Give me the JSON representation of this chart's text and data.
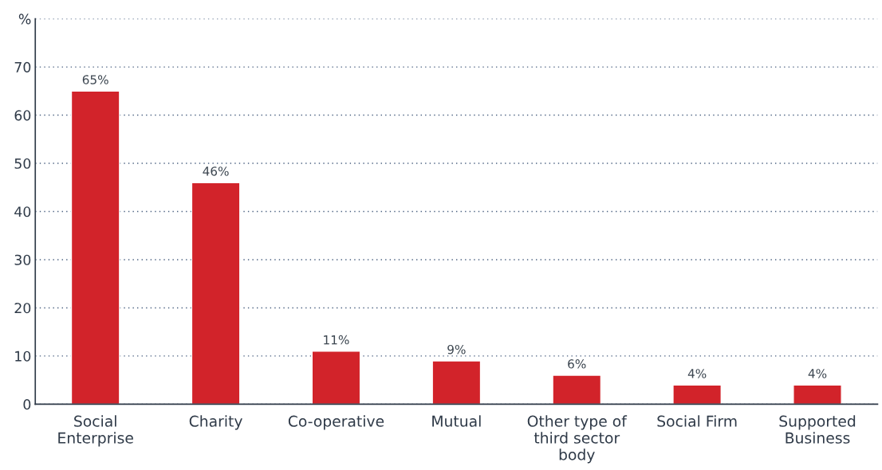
{
  "chart_data": {
    "type": "bar",
    "categories": [
      "Social\nEnterprise",
      "Charity",
      "Co-operative",
      "Mutual",
      "Other type of\nthird sector\nbody",
      "Social Firm",
      "Supported\nBusiness"
    ],
    "values": [
      65,
      46,
      11,
      9,
      6,
      4,
      4
    ],
    "value_labels": [
      "65%",
      "46%",
      "11%",
      "9%",
      "6%",
      "4%",
      "4%"
    ],
    "color": "#d2232a",
    "ylim": [
      0,
      80
    ],
    "yticks": [
      0,
      10,
      20,
      30,
      40,
      50,
      60,
      70,
      {
        "value": 80,
        "label": "%"
      }
    ],
    "grid": "y",
    "legend": false
  }
}
